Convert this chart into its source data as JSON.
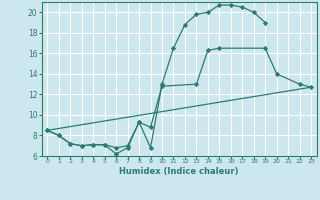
{
  "xlabel": "Humidex (Indice chaleur)",
  "background_color": "#cce8ee",
  "grid_color": "#ffffff",
  "line_color": "#2d7b6f",
  "xlim": [
    -0.5,
    23.5
  ],
  "ylim": [
    6,
    21
  ],
  "xticks": [
    0,
    1,
    2,
    3,
    4,
    5,
    6,
    7,
    8,
    9,
    10,
    11,
    12,
    13,
    14,
    15,
    16,
    17,
    18,
    19,
    20,
    21,
    22,
    23
  ],
  "yticks": [
    6,
    8,
    10,
    12,
    14,
    16,
    18,
    20
  ],
  "series1_x": [
    0,
    1,
    2,
    3,
    4,
    5,
    6,
    7,
    8,
    9,
    10,
    11,
    12,
    13,
    14,
    15,
    16,
    17,
    18,
    19
  ],
  "series1_y": [
    8.5,
    8.0,
    7.2,
    7.0,
    7.1,
    7.1,
    6.2,
    6.8,
    9.3,
    6.8,
    13.0,
    16.5,
    18.8,
    19.8,
    20.0,
    20.7,
    20.7,
    20.5,
    20.0,
    19.0
  ],
  "series2_x": [
    0,
    1,
    2,
    3,
    4,
    5,
    6,
    7,
    8,
    9,
    10,
    13,
    14,
    15,
    19,
    20,
    22,
    23
  ],
  "series2_y": [
    8.5,
    8.0,
    7.2,
    7.0,
    7.1,
    7.1,
    6.8,
    7.0,
    9.3,
    8.8,
    12.8,
    13.0,
    16.3,
    16.5,
    16.5,
    14.0,
    13.0,
    12.7
  ],
  "series3_x": [
    0,
    23
  ],
  "series3_y": [
    8.5,
    12.7
  ]
}
